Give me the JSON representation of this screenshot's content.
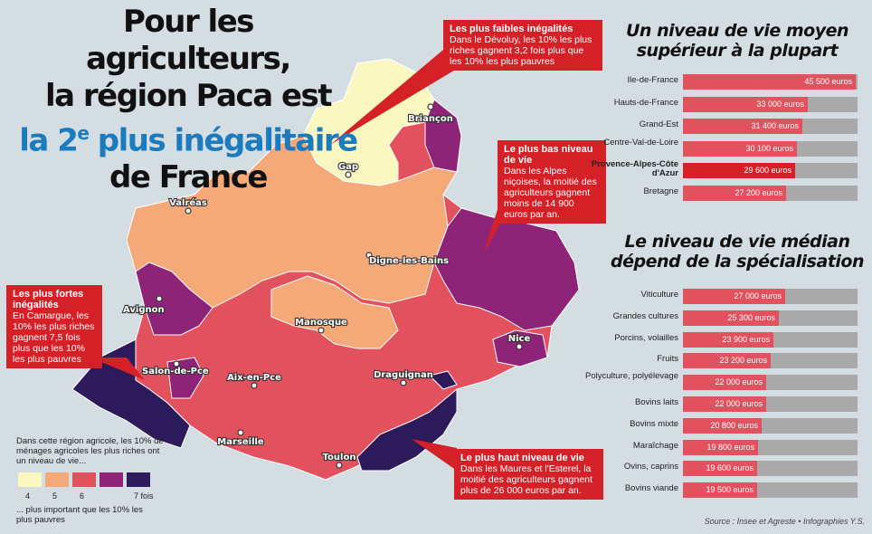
{
  "title": {
    "line1": "Pour les agriculteurs,",
    "line2": "la région Paca est",
    "line3_blue": "la 2",
    "line3_sup": "e",
    "line3_rest": " plus inégalitaire",
    "line4": "de France"
  },
  "cities": [
    {
      "name": "Briançon"
    },
    {
      "name": "Gap"
    },
    {
      "name": "Valréas"
    },
    {
      "name": "Digne-les-Bains"
    },
    {
      "name": "Avignon"
    },
    {
      "name": "Manosque"
    },
    {
      "name": "Nice"
    },
    {
      "name": "Salon-de-Pce"
    },
    {
      "name": "Aix-en-Pce"
    },
    {
      "name": "Draguignan"
    },
    {
      "name": "Marseille"
    },
    {
      "name": "Toulon"
    }
  ],
  "callouts": {
    "faibles": {
      "heading": "Les plus faibles inégalités",
      "body": "Dans le Dévoluy, les 10% les plus riches gagnent 3,2 fois plus que les 10% les plus pauvres"
    },
    "bas": {
      "heading": "Le plus bas niveau de vie",
      "body": "Dans les Alpes niçoises, la moitié des agriculteurs gagnent moins de 14 900 euros par an."
    },
    "fortes": {
      "heading": "Les plus fortes inégalités",
      "body": "En Camargue, les 10% les plus riches gagnent 7,5 fois plus que les 10% les plus pauvres"
    },
    "haut": {
      "heading": "Le plus haut niveau de vie",
      "body": "Dans les Maures et l'Esterel, la moitié des agriculteurs gagnent plus de 26 000 euros par an."
    }
  },
  "legend": {
    "intro": "Dans cette région agricole, les 10% de ménages agricoles les plus riches ont un niveau de vie...",
    "outro": "... plus important que les 10% les plus pauvres",
    "swatches": [
      {
        "label": "4",
        "color": "#fbf7c0"
      },
      {
        "label": "5",
        "color": "#f5a878"
      },
      {
        "label": "6",
        "color": "#e2515e"
      },
      {
        "label": "",
        "color": "#8e2477"
      },
      {
        "label": "7 fois",
        "color": "#2d1a5a"
      }
    ]
  },
  "panel1": {
    "title_line1": "Un niveau de vie moyen",
    "title_line2": "supérieur à la plupart"
  },
  "panel2": {
    "title_line1": "Le niveau de vie médian",
    "title_line2": "dépend de la spécialisation"
  },
  "source": "Source : Insee et Agreste • Infographies Y.S.",
  "chart_data": [
    {
      "type": "bar",
      "title": "Un niveau de vie moyen supérieur à la plupart",
      "categories": [
        "Ile-de-France",
        "Hauts-de-France",
        "Grand-Est",
        "Centre-Val-de-Loire",
        "Provence-Alpes-Côte d'Azur",
        "Bretagne"
      ],
      "labels": [
        "Ile-de-France",
        "Hauts-de-France",
        "Grand-Est",
        "Centre-Val-de-Loire",
        "Provence-Alpes-Côte d'Azur",
        "Bretagne"
      ],
      "values": [
        45500,
        33000,
        31400,
        30100,
        29600,
        27200
      ],
      "value_labels": [
        "45 500 euros",
        "33 000 euros",
        "31 400 euros",
        "30 100 euros",
        "29 600 euros",
        "27 200 euros"
      ],
      "highlight": "Provence-Alpes-Côte d'Azur",
      "xlim": [
        0,
        46000
      ]
    },
    {
      "type": "bar",
      "title": "Le niveau de vie médian dépend de la spécialisation",
      "categories": [
        "Viticulture",
        "Grandes cultures",
        "Porcins, volailles",
        "Fruits",
        "Polyculture, polyélevage",
        "Bovins laits",
        "Bovins mixte",
        "Maraîchage",
        "Ovins, caprins",
        "Bovins viande"
      ],
      "values": [
        27000,
        25300,
        23900,
        23200,
        22000,
        22000,
        20800,
        19800,
        19600,
        19500
      ],
      "value_labels": [
        "27 000 euros",
        "25 300 euros",
        "23 900 euros",
        "23 200 euros",
        "22 000 euros",
        "22 000 euros",
        "20 800 euros",
        "19 800 euros",
        "19 600 euros",
        "19 500 euros"
      ],
      "xlim": [
        0,
        46000
      ]
    }
  ]
}
